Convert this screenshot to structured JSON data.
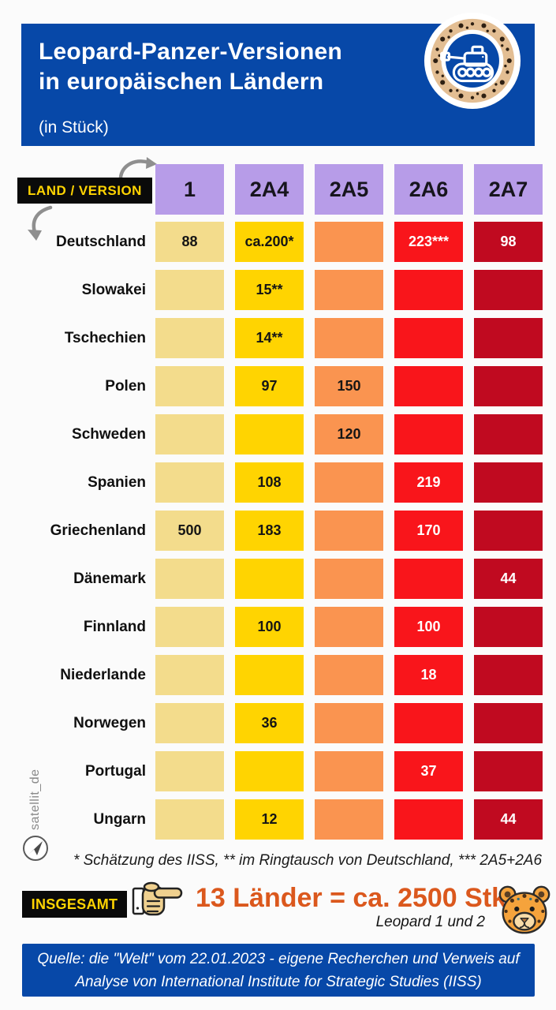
{
  "header": {
    "title_line1": "Leopard-Panzer-Versionen",
    "title_line2": "in europäischen Ländern",
    "subtitle": "(in Stück)"
  },
  "table": {
    "corner_label": "LAND / VERSION"
  },
  "chart_data": {
    "type": "table",
    "title": "Leopard-Panzer-Versionen in europäischen Ländern (in Stück)",
    "columns": [
      "1",
      "2A4",
      "2A5",
      "2A6",
      "2A7"
    ],
    "rows": [
      {
        "country": "Deutschland",
        "values": [
          "88",
          "ca.200*",
          "",
          "223***",
          "98"
        ]
      },
      {
        "country": "Slowakei",
        "values": [
          "",
          "15**",
          "",
          "",
          ""
        ]
      },
      {
        "country": "Tschechien",
        "values": [
          "",
          "14**",
          "",
          "",
          ""
        ]
      },
      {
        "country": "Polen",
        "values": [
          "",
          "97",
          "150",
          "",
          ""
        ]
      },
      {
        "country": "Schweden",
        "values": [
          "",
          "",
          "120",
          "",
          ""
        ]
      },
      {
        "country": "Spanien",
        "values": [
          "",
          "108",
          "",
          "219",
          ""
        ]
      },
      {
        "country": "Griechenland",
        "values": [
          "500",
          "183",
          "",
          "170",
          ""
        ]
      },
      {
        "country": "Dänemark",
        "values": [
          "",
          "",
          "",
          "",
          "44"
        ]
      },
      {
        "country": "Finnland",
        "values": [
          "",
          "100",
          "",
          "100",
          ""
        ]
      },
      {
        "country": "Niederlande",
        "values": [
          "",
          "",
          "",
          "18",
          ""
        ]
      },
      {
        "country": "Norwegen",
        "values": [
          "",
          "36",
          "",
          "",
          ""
        ]
      },
      {
        "country": "Portugal",
        "values": [
          "",
          "",
          "",
          "37",
          ""
        ]
      },
      {
        "country": "Ungarn",
        "values": [
          "",
          "12",
          "",
          "",
          "44"
        ]
      }
    ]
  },
  "footnote": "* Schätzung des IISS, ** im Ringtausch von Deutschland, *** 2A5+2A6",
  "total": {
    "badge": "INSGESAMT",
    "headline": "13 Länder = ca. 2500 Stk.",
    "subline": "Leopard 1 und 2"
  },
  "source": {
    "line1": "Quelle:  die \"Welt\" vom 22.01.2023 - eigene Recherchen und Verweis auf",
    "line2": "Analyse von International Institute for Strategic Studies (IISS)"
  },
  "watermark": "satellit_de",
  "colors": {
    "page_bg": "#FBFBFB",
    "header_blue": "#0748A8",
    "purple_header": "#B79CE8",
    "column_cells": [
      "#F3DC8C",
      "#FFD401",
      "#FA9450",
      "#F9151B",
      "#C00A20"
    ],
    "cell_text_dark": "#151515",
    "cell_text_light": "#FFFFFF",
    "badge_bg": "#0A0A0A",
    "badge_text": "#FFD401",
    "total_orange": "#DB581D",
    "arrow_gray": "#8F8F8F",
    "watermark_gray": "#8A8A8A"
  }
}
